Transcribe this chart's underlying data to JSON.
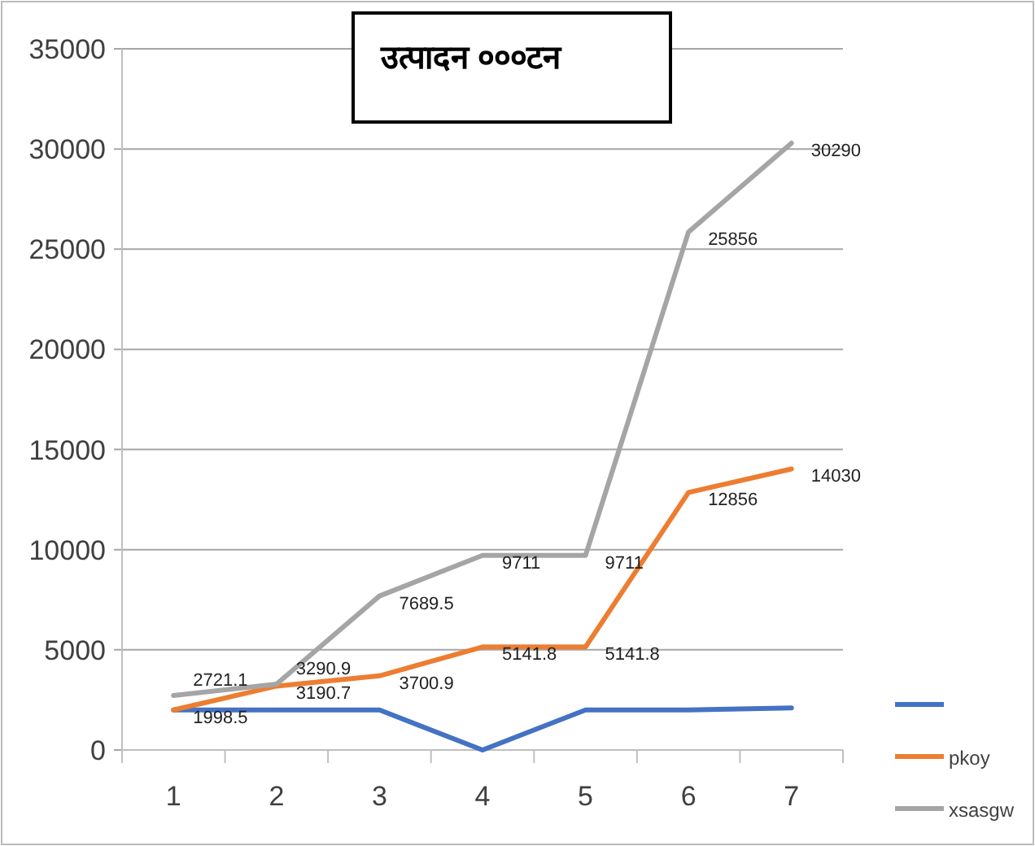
{
  "chart_data": {
    "type": "line",
    "title": "उत्पादन ०००टन",
    "categories": [
      "1",
      "2",
      "3",
      "4",
      "5",
      "6",
      "7"
    ],
    "series": [
      {
        "color": "#4472c4",
        "values": [
          2000,
          2000,
          2000,
          0,
          2000,
          2000,
          2100
        ]
      },
      {
        "name": "pkoy",
        "color": "#ed7d31",
        "values": [
          1998.5,
          3190.7,
          3700.9,
          5141.8,
          5141.8,
          12856,
          14030
        ],
        "value_labels": [
          "1998.5",
          "3190.7",
          "3700.9",
          "5141.8",
          "5141.8",
          "12856",
          "14030"
        ]
      },
      {
        "name": "xsasgw",
        "color": "#a5a5a5",
        "values": [
          2721.1,
          3290.9,
          7689.5,
          9711,
          9711,
          25856,
          30290
        ],
        "value_labels": [
          "2721.1",
          "3290.9",
          "7689.5",
          "9711",
          "9711",
          "25856",
          "30290"
        ]
      }
    ],
    "ylim": [
      0,
      35000
    ],
    "yticks": [
      0,
      5000,
      10000,
      15000,
      20000,
      25000,
      30000,
      35000
    ],
    "grid": "y",
    "legend": "right",
    "marker": "none",
    "line_style": "solid"
  }
}
